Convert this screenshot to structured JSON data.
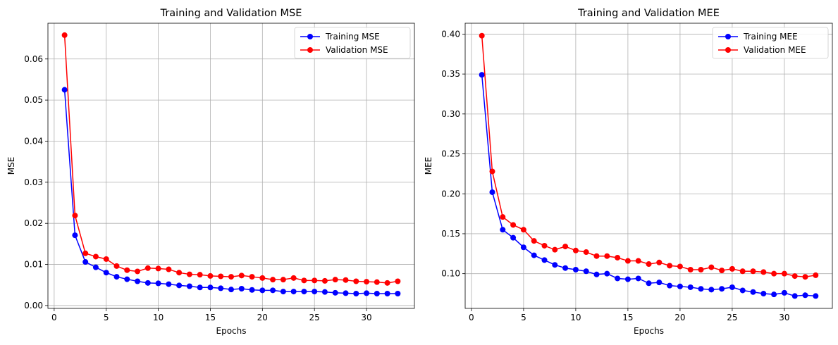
{
  "chart_data": [
    {
      "type": "line",
      "title": "Training and Validation MSE",
      "xlabel": "Epochs",
      "ylabel": "MSE",
      "grid": true,
      "legend_position": "top-right",
      "xlim": [
        -0.6,
        34.6
      ],
      "ylim": [
        -0.0007,
        0.0687
      ],
      "x_ticks": [
        0,
        5,
        10,
        15,
        20,
        25,
        30
      ],
      "y_ticks": [
        0.0,
        0.01,
        0.02,
        0.03,
        0.04,
        0.05,
        0.06
      ],
      "y_tick_labels": [
        "0.00",
        "0.01",
        "0.02",
        "0.03",
        "0.04",
        "0.05",
        "0.06"
      ],
      "x": [
        1,
        2,
        3,
        4,
        5,
        6,
        7,
        8,
        9,
        10,
        11,
        12,
        13,
        14,
        15,
        16,
        17,
        18,
        19,
        20,
        21,
        22,
        23,
        24,
        25,
        26,
        27,
        28,
        29,
        30,
        31,
        32,
        33
      ],
      "series": [
        {
          "name": "Training MSE",
          "color": "#0000ff",
          "values": [
            0.0525,
            0.0171,
            0.0106,
            0.0093,
            0.008,
            0.007,
            0.0064,
            0.0059,
            0.0055,
            0.0054,
            0.0052,
            0.0049,
            0.0047,
            0.0044,
            0.0044,
            0.0042,
            0.0039,
            0.0041,
            0.0038,
            0.0037,
            0.0037,
            0.0034,
            0.0034,
            0.0034,
            0.0034,
            0.0033,
            0.0031,
            0.003,
            0.0029,
            0.003,
            0.0029,
            0.0029,
            0.0029
          ]
        },
        {
          "name": "Validation MSE",
          "color": "#ff0000",
          "values": [
            0.0658,
            0.0219,
            0.0127,
            0.0119,
            0.0113,
            0.0096,
            0.0086,
            0.0083,
            0.0091,
            0.009,
            0.0088,
            0.008,
            0.0076,
            0.0075,
            0.0072,
            0.0071,
            0.007,
            0.0073,
            0.007,
            0.0067,
            0.0063,
            0.0063,
            0.0067,
            0.0061,
            0.0061,
            0.006,
            0.0063,
            0.0062,
            0.0059,
            0.0058,
            0.0057,
            0.0055,
            0.0059
          ]
        }
      ]
    },
    {
      "type": "line",
      "title": "Training and Validation MEE",
      "xlabel": "Epochs",
      "ylabel": "MEE",
      "grid": true,
      "legend_position": "top-right",
      "xlim": [
        -0.6,
        34.6
      ],
      "ylim": [
        0.0565,
        0.4136
      ],
      "x_ticks": [
        0,
        5,
        10,
        15,
        20,
        25,
        30
      ],
      "y_ticks": [
        0.1,
        0.15,
        0.2,
        0.25,
        0.3,
        0.35,
        0.4
      ],
      "y_tick_labels": [
        "0.10",
        "0.15",
        "0.20",
        "0.25",
        "0.30",
        "0.35",
        "0.40"
      ],
      "x": [
        1,
        2,
        3,
        4,
        5,
        6,
        7,
        8,
        9,
        10,
        11,
        12,
        13,
        14,
        15,
        16,
        17,
        18,
        19,
        20,
        21,
        22,
        23,
        24,
        25,
        26,
        27,
        28,
        29,
        30,
        31,
        32,
        33
      ],
      "series": [
        {
          "name": "Training MEE",
          "color": "#0000ff",
          "values": [
            0.349,
            0.202,
            0.155,
            0.145,
            0.133,
            0.123,
            0.117,
            0.111,
            0.107,
            0.105,
            0.103,
            0.099,
            0.1,
            0.094,
            0.093,
            0.094,
            0.088,
            0.089,
            0.085,
            0.084,
            0.083,
            0.081,
            0.08,
            0.081,
            0.083,
            0.079,
            0.077,
            0.075,
            0.074,
            0.076,
            0.072,
            0.073,
            0.072
          ]
        },
        {
          "name": "Validation MEE",
          "color": "#ff0000",
          "values": [
            0.398,
            0.228,
            0.171,
            0.161,
            0.155,
            0.141,
            0.135,
            0.13,
            0.134,
            0.129,
            0.127,
            0.122,
            0.122,
            0.12,
            0.116,
            0.116,
            0.112,
            0.114,
            0.11,
            0.109,
            0.105,
            0.105,
            0.108,
            0.104,
            0.106,
            0.103,
            0.103,
            0.102,
            0.1,
            0.1,
            0.097,
            0.096,
            0.098
          ]
        }
      ]
    }
  ]
}
